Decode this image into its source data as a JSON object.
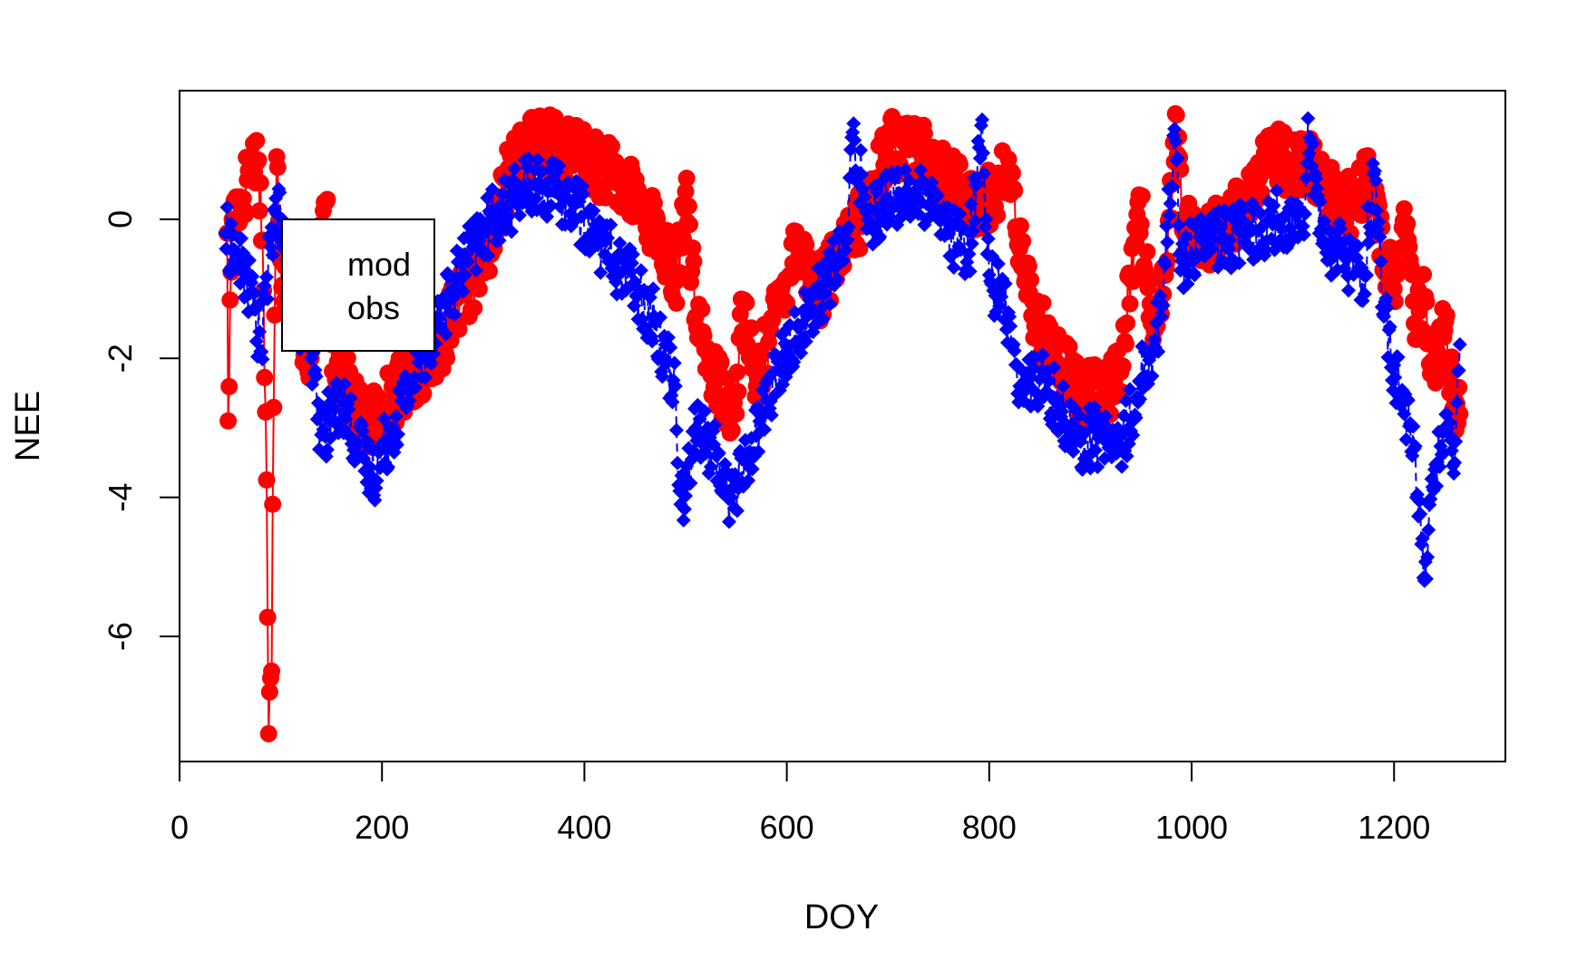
{
  "chart_data": {
    "type": "scatter",
    "title": "",
    "xlabel": "DOY",
    "ylabel": "NEE",
    "xlim": [
      0,
      1310
    ],
    "ylim": [
      -7.8,
      1.85
    ],
    "x_ticks": [
      0,
      200,
      400,
      600,
      800,
      1000,
      1200
    ],
    "y_ticks": [
      -6,
      -4,
      -2,
      0
    ],
    "grid": false,
    "legend": {
      "placement": "top-left",
      "entries": [
        "mod",
        "obs"
      ]
    },
    "series": [
      {
        "name": "mod",
        "color": "#ff0000",
        "marker": "circle",
        "line": "solid",
        "keypoints": [
          [
            47,
            -0.2
          ],
          [
            48,
            -2.9
          ],
          [
            52,
            0.0
          ],
          [
            58,
            0.25
          ],
          [
            63,
            0.3
          ],
          [
            68,
            0.7
          ],
          [
            72,
            0.9
          ],
          [
            78,
            0.85
          ],
          [
            82,
            -0.3
          ],
          [
            86,
            -3.75
          ],
          [
            88,
            -7.4
          ],
          [
            89,
            -6.8
          ],
          [
            90,
            -6.6
          ],
          [
            91,
            -6.5
          ],
          [
            92,
            -4.1
          ],
          [
            96,
            0.9
          ],
          [
            100,
            -0.6
          ],
          [
            110,
            -1.2
          ],
          [
            130,
            -2.0
          ],
          [
            145,
            0.25
          ],
          [
            150,
            -1.8
          ],
          [
            170,
            -2.6
          ],
          [
            185,
            -3.0
          ],
          [
            200,
            -2.7
          ],
          [
            225,
            -2.3
          ],
          [
            250,
            -2.0
          ],
          [
            270,
            -1.4
          ],
          [
            290,
            -0.9
          ],
          [
            310,
            -0.2
          ],
          [
            330,
            0.9
          ],
          [
            350,
            1.1
          ],
          [
            370,
            1.05
          ],
          [
            390,
            0.95
          ],
          [
            410,
            0.8
          ],
          [
            430,
            0.6
          ],
          [
            450,
            0.3
          ],
          [
            470,
            -0.1
          ],
          [
            490,
            -0.9
          ],
          [
            500,
            0.4
          ],
          [
            510,
            -1.4
          ],
          [
            530,
            -2.3
          ],
          [
            550,
            -2.8
          ],
          [
            555,
            -1.15
          ],
          [
            570,
            -2.4
          ],
          [
            590,
            -1.3
          ],
          [
            610,
            -0.3
          ],
          [
            630,
            -1.1
          ],
          [
            650,
            -0.6
          ],
          [
            670,
            -0.1
          ],
          [
            690,
            0.6
          ],
          [
            700,
            1.1
          ],
          [
            720,
            1.0
          ],
          [
            740,
            0.9
          ],
          [
            760,
            0.6
          ],
          [
            780,
            0.2
          ],
          [
            800,
            0.3
          ],
          [
            820,
            0.7
          ],
          [
            835,
            -0.9
          ],
          [
            850,
            -1.5
          ],
          [
            870,
            -2.1
          ],
          [
            890,
            -2.4
          ],
          [
            910,
            -2.6
          ],
          [
            930,
            -2.2
          ],
          [
            948,
            0.35
          ],
          [
            960,
            -1.5
          ],
          [
            975,
            -0.7
          ],
          [
            985,
            1.5
          ],
          [
            990,
            0.0
          ],
          [
            1000,
            -0.3
          ],
          [
            1020,
            -0.2
          ],
          [
            1040,
            0.0
          ],
          [
            1060,
            0.4
          ],
          [
            1080,
            0.9
          ],
          [
            1100,
            0.8
          ],
          [
            1120,
            0.7
          ],
          [
            1140,
            0.4
          ],
          [
            1160,
            0.1
          ],
          [
            1175,
            0.6
          ],
          [
            1190,
            -0.5
          ],
          [
            1200,
            -1.0
          ],
          [
            1210,
            0.15
          ],
          [
            1220,
            -1.5
          ],
          [
            1230,
            -1.2
          ],
          [
            1240,
            -2.2
          ],
          [
            1250,
            -1.6
          ],
          [
            1260,
            -2.6
          ],
          [
            1265,
            -2.8
          ]
        ]
      },
      {
        "name": "obs",
        "color": "#0000ff",
        "marker": "diamond",
        "line": "dashed",
        "keypoints": [
          [
            45,
            -0.2
          ],
          [
            55,
            -0.5
          ],
          [
            65,
            -0.8
          ],
          [
            75,
            -1.3
          ],
          [
            80,
            -1.9
          ],
          [
            90,
            -0.4
          ],
          [
            95,
            0.3
          ],
          [
            110,
            -1.0
          ],
          [
            130,
            -2.0
          ],
          [
            140,
            -3.1
          ],
          [
            160,
            -2.6
          ],
          [
            175,
            -3.2
          ],
          [
            190,
            -3.7
          ],
          [
            210,
            -3.0
          ],
          [
            230,
            -2.3
          ],
          [
            250,
            -1.6
          ],
          [
            270,
            -1.0
          ],
          [
            290,
            -0.4
          ],
          [
            310,
            0.0
          ],
          [
            330,
            0.3
          ],
          [
            350,
            0.5
          ],
          [
            370,
            0.4
          ],
          [
            390,
            0.2
          ],
          [
            410,
            -0.2
          ],
          [
            430,
            -0.6
          ],
          [
            450,
            -0.9
          ],
          [
            470,
            -1.5
          ],
          [
            490,
            -2.4
          ],
          [
            495,
            -4.1
          ],
          [
            510,
            -3.0
          ],
          [
            530,
            -3.4
          ],
          [
            545,
            -4.0
          ],
          [
            560,
            -3.5
          ],
          [
            580,
            -2.6
          ],
          [
            600,
            -1.9
          ],
          [
            620,
            -1.4
          ],
          [
            640,
            -0.9
          ],
          [
            660,
            -0.3
          ],
          [
            665,
            1.25
          ],
          [
            680,
            0.0
          ],
          [
            700,
            0.3
          ],
          [
            720,
            0.4
          ],
          [
            740,
            0.2
          ],
          [
            760,
            -0.2
          ],
          [
            780,
            -0.5
          ],
          [
            792,
            1.35
          ],
          [
            800,
            -0.8
          ],
          [
            820,
            -1.4
          ],
          [
            830,
            -2.4
          ],
          [
            850,
            -2.3
          ],
          [
            870,
            -2.7
          ],
          [
            890,
            -3.2
          ],
          [
            910,
            -3.1
          ],
          [
            930,
            -3.3
          ],
          [
            950,
            -2.3
          ],
          [
            970,
            -1.4
          ],
          [
            983,
            1.3
          ],
          [
            990,
            -0.6
          ],
          [
            1010,
            -0.3
          ],
          [
            1030,
            -0.3
          ],
          [
            1050,
            -0.2
          ],
          [
            1070,
            -0.1
          ],
          [
            1090,
            0.0
          ],
          [
            1110,
            -0.1
          ],
          [
            1115,
            1.45
          ],
          [
            1130,
            -0.3
          ],
          [
            1150,
            -0.5
          ],
          [
            1170,
            -0.8
          ],
          [
            1180,
            0.65
          ],
          [
            1190,
            -1.4
          ],
          [
            1200,
            -2.1
          ],
          [
            1210,
            -2.8
          ],
          [
            1220,
            -3.3
          ],
          [
            1230,
            -5.2
          ],
          [
            1240,
            -3.6
          ],
          [
            1250,
            -3.0
          ],
          [
            1260,
            -3.5
          ],
          [
            1265,
            -1.8
          ]
        ]
      }
    ]
  }
}
